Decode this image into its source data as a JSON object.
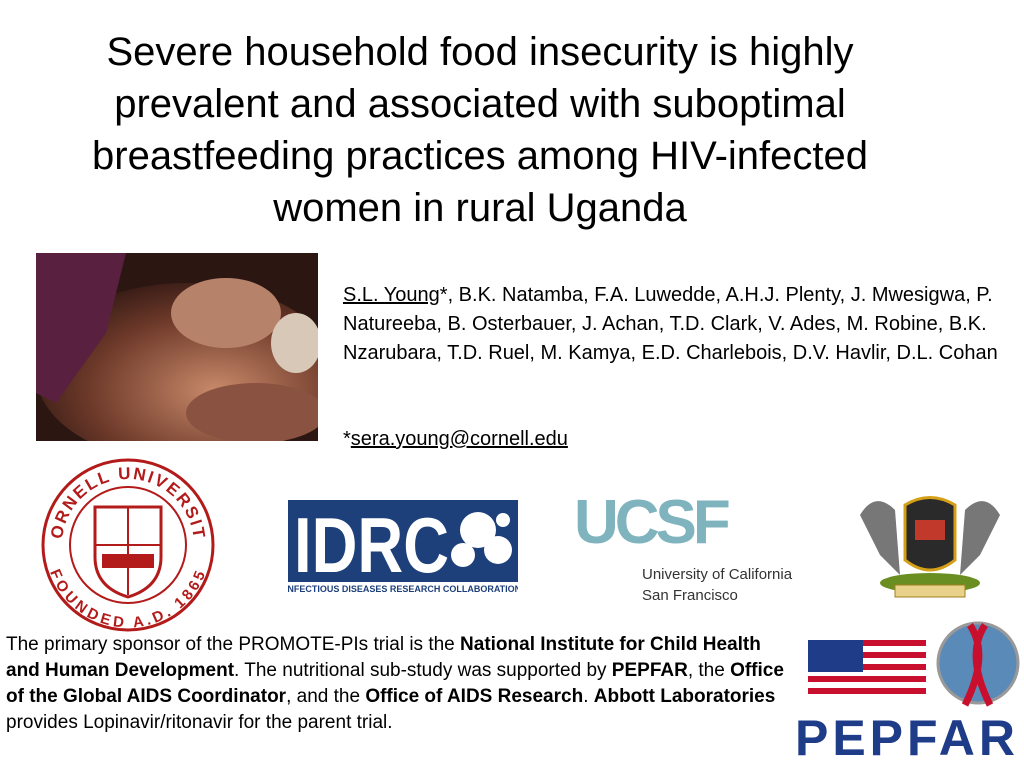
{
  "title": "Severe household food insecurity is highly prevalent and associated with suboptimal breastfeeding practices among HIV-infected women in rural Uganda",
  "authors": {
    "lead": "S.L. Young",
    "rest": "*, B.K. Natamba, F.A. Luwedde, A.H.J. Plenty, J. Mwesigwa, P. Natureeba, B. Osterbauer, J. Achan, T.D. Clark, V. Ades, M. Robine, B.K. Nzarubara, T.D. Ruel, M. Kamya, E.D. Charlebois, D.V. Havlir, D.L. Cohan"
  },
  "contact": {
    "marker": "*",
    "email": "sera.young@cornell.edu"
  },
  "logos": {
    "cornell": {
      "top": "CORNELL UNIVERSITY",
      "bottom": "FOUNDED A.D. 1865"
    },
    "idrc": {
      "name": "IDRC",
      "caption": "INFECTIOUS DISEASES RESEARCH COLLABORATION"
    },
    "ucsf": {
      "name": "UCSF",
      "line1": "University of California",
      "line2": "San Francisco"
    },
    "pepfar": "PEPFAR"
  },
  "funding": [
    {
      "text": "The primary sponsor of the PROMOTE-PIs trial is the ",
      "bold": false
    },
    {
      "text": "National Institute for Child Health and Human Development",
      "bold": true
    },
    {
      "text": ". The nutritional sub-study was supported by ",
      "bold": false
    },
    {
      "text": "PEPFAR",
      "bold": true
    },
    {
      "text": ", the ",
      "bold": false
    },
    {
      "text": "Office of the Global AIDS Coordinator",
      "bold": true
    },
    {
      "text": ", and the ",
      "bold": false
    },
    {
      "text": "Office of AIDS Research",
      "bold": true
    },
    {
      "text": ". ",
      "bold": false
    },
    {
      "text": "Abbott Laboratories",
      "bold": true
    },
    {
      "text": " provides Lopinavir/ritonavir for the parent trial.",
      "bold": false
    }
  ]
}
